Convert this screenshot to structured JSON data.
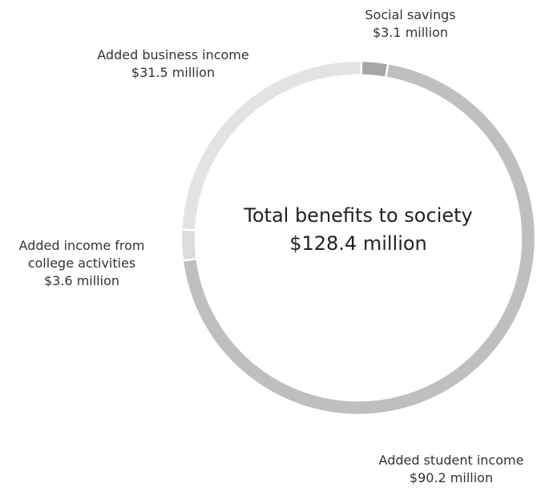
{
  "chart_data": {
    "type": "pie",
    "subtype": "donut",
    "center_label": {
      "title": "Total benefits to society",
      "value": "$128.4 million"
    },
    "total": 128.4,
    "unit": "$ million",
    "slices": [
      {
        "name": "Social savings",
        "value": 3.1,
        "value_label": "$3.1 million",
        "color": "#a6a6a6"
      },
      {
        "name": "Added student income",
        "value": 90.2,
        "value_label": "$90.2 million",
        "color": "#bfbfbf"
      },
      {
        "name": "Added income from college activities",
        "name_lines": [
          "Added income from",
          "college activities"
        ],
        "value": 3.6,
        "value_label": "$3.6 million",
        "color": "#dcdcdc"
      },
      {
        "name": "Added business income",
        "value": 31.5,
        "value_label": "$31.5 million",
        "color": "#e3e3e3"
      }
    ],
    "slice_border_color": "#ffffff",
    "legend": "none"
  }
}
